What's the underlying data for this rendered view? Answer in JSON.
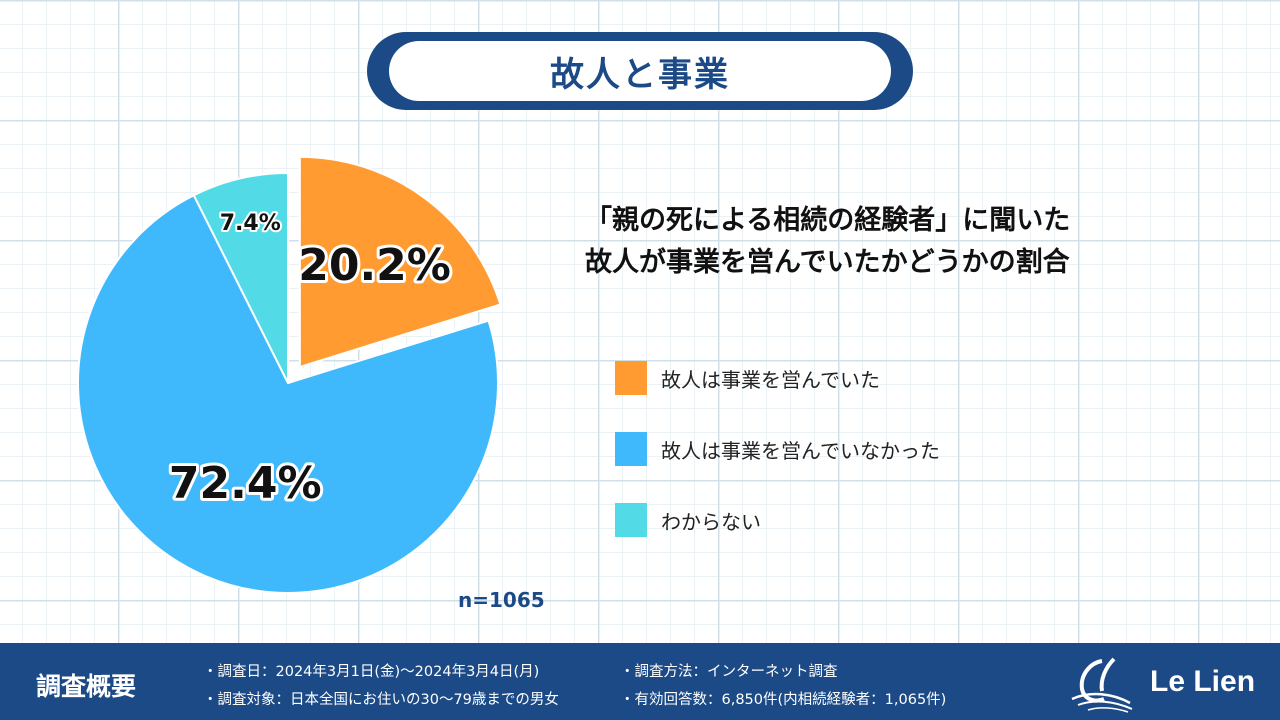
{
  "header": {
    "title": "故人と事業"
  },
  "chart_data": {
    "type": "pie",
    "title": "「親の死による相続の経験者」に聞いた\n故人が事業を営んでいたかどうかの割合",
    "categories": [
      "故人は事業を営んでいた",
      "故人は事業を営んでいなかった",
      "わからない"
    ],
    "values": [
      20.2,
      72.4,
      7.4
    ],
    "value_labels": [
      "20.2%",
      "72.4%",
      "7.4%"
    ],
    "colors": [
      "#ff9b30",
      "#40b9fc",
      "#52dbe6"
    ],
    "exploded": [
      true,
      false,
      false
    ],
    "legend_position": "right",
    "sample_size": "n=1065"
  },
  "question": {
    "line1": "「親の死による相続の経験者」に聞いた",
    "line2": "故人が事業を営んでいたかどうかの割合"
  },
  "footer": {
    "title": "調査概要",
    "notes": [
      "・調査日：2024年3月1日(金)〜2024年3月4日(月)",
      "・調査対象：日本全国にお住いの30〜79歳までの男女",
      "・調査方法：インターネット調査",
      "・有効回答数：6,850件(内相続経験者：1,065件)"
    ],
    "logo_text": "Le Lien"
  }
}
